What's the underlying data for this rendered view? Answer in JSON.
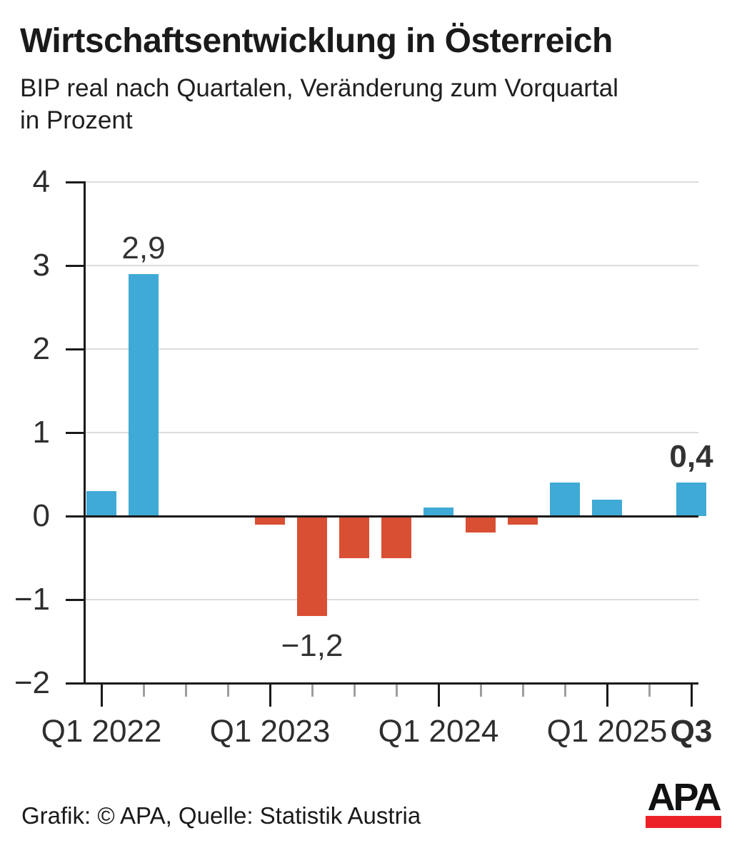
{
  "title": "Wirtschaftsentwicklung in Österreich",
  "subtitle_line1": "BIP real nach Quartalen, Veränderung zum Vorquartal",
  "subtitle_line2": "in Prozent",
  "footer": {
    "credit": "Grafik: © APA, Quelle: Statistik Austria",
    "logo_text": "APA"
  },
  "colors": {
    "positive_bar": "#3EAAD5",
    "negative_bar": "#D94F33",
    "axis": "#1a1a1a",
    "gridline": "#dcdcdc",
    "minor_tick": "#9e9e9e",
    "logo_red": "#EC2127",
    "text": "#1a1a1a"
  },
  "chart_data": {
    "type": "bar",
    "title": "Wirtschaftsentwicklung in Österreich",
    "subtitle": "BIP real nach Quartalen, Veränderung zum Vorquartal in Prozent",
    "xlabel": "",
    "ylabel": "",
    "unit": "Prozent (Veränderung zum Vorquartal)",
    "grid": true,
    "ylim": [
      -2,
      4
    ],
    "categories": [
      "Q1 2022",
      "Q2 2022",
      "Q3 2022",
      "Q4 2022",
      "Q1 2023",
      "Q2 2023",
      "Q3 2023",
      "Q4 2023",
      "Q1 2024",
      "Q2 2024",
      "Q3 2024",
      "Q4 2024",
      "Q1 2025",
      "Q2 2025",
      "Q3 2025"
    ],
    "values": [
      0.3,
      2.9,
      0.0,
      0.0,
      -0.1,
      -1.2,
      -0.5,
      -0.5,
      0.1,
      -0.2,
      -0.1,
      0.4,
      0.2,
      0.0,
      0.4
    ],
    "bar_labels": [
      {
        "index": 1,
        "text": "2,9",
        "position": "above",
        "bold": false
      },
      {
        "index": 5,
        "text": "−1,2",
        "position": "below",
        "bold": false
      },
      {
        "index": 14,
        "text": "0,4",
        "position": "above",
        "bold": true
      }
    ],
    "y_ticks": [
      4,
      3,
      2,
      1,
      0,
      -1,
      -2
    ],
    "y_tick_labels": [
      "4",
      "3",
      "2",
      "1",
      "0",
      "−1",
      "−2"
    ],
    "x_tick_labels": [
      {
        "index": 0,
        "text": "Q1 2022",
        "bold": false
      },
      {
        "index": 4,
        "text": "Q1 2023",
        "bold": false
      },
      {
        "index": 8,
        "text": "Q1 2024",
        "bold": false
      },
      {
        "index": 12,
        "text": "Q1 2025",
        "bold": false
      },
      {
        "index": 14,
        "text": "Q3",
        "bold": true
      }
    ],
    "major_tick_indices": [
      0,
      4,
      8,
      12,
      14
    ]
  }
}
